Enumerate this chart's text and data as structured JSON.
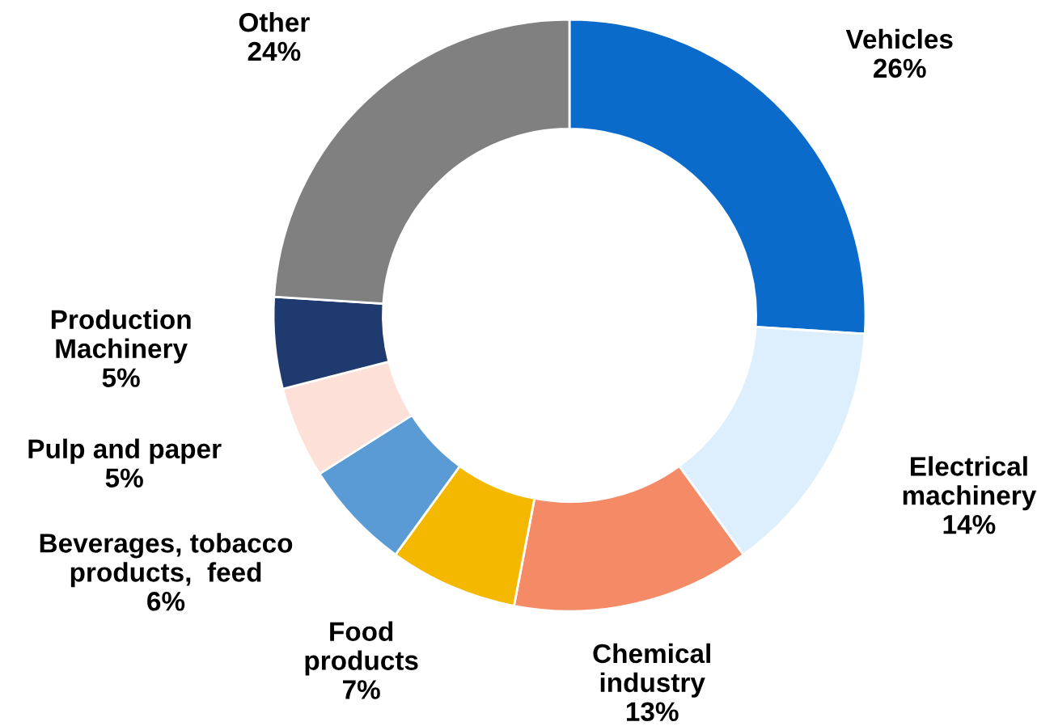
{
  "chart_data": {
    "type": "donut",
    "categories": [
      "Vehicles",
      "Electrical\nmachinery",
      "Chemical\nindustry",
      "Food\nproducts",
      "Beverages, tobacco\nproducts,  feed",
      "Pulp and paper",
      "Production\nMachinery",
      "Other"
    ],
    "values": [
      26,
      14,
      13,
      7,
      6,
      5,
      5,
      24
    ],
    "value_labels": [
      "26%",
      "14%",
      "13%",
      "7%",
      "6%",
      "5%",
      "5%",
      "24%"
    ],
    "colors": [
      "#0b6bcb",
      "#ddeefc",
      "#f58a66",
      "#f5b800",
      "#5b9bd5",
      "#fde0d8",
      "#1f3a6e",
      "#808080"
    ],
    "legend": false
  }
}
